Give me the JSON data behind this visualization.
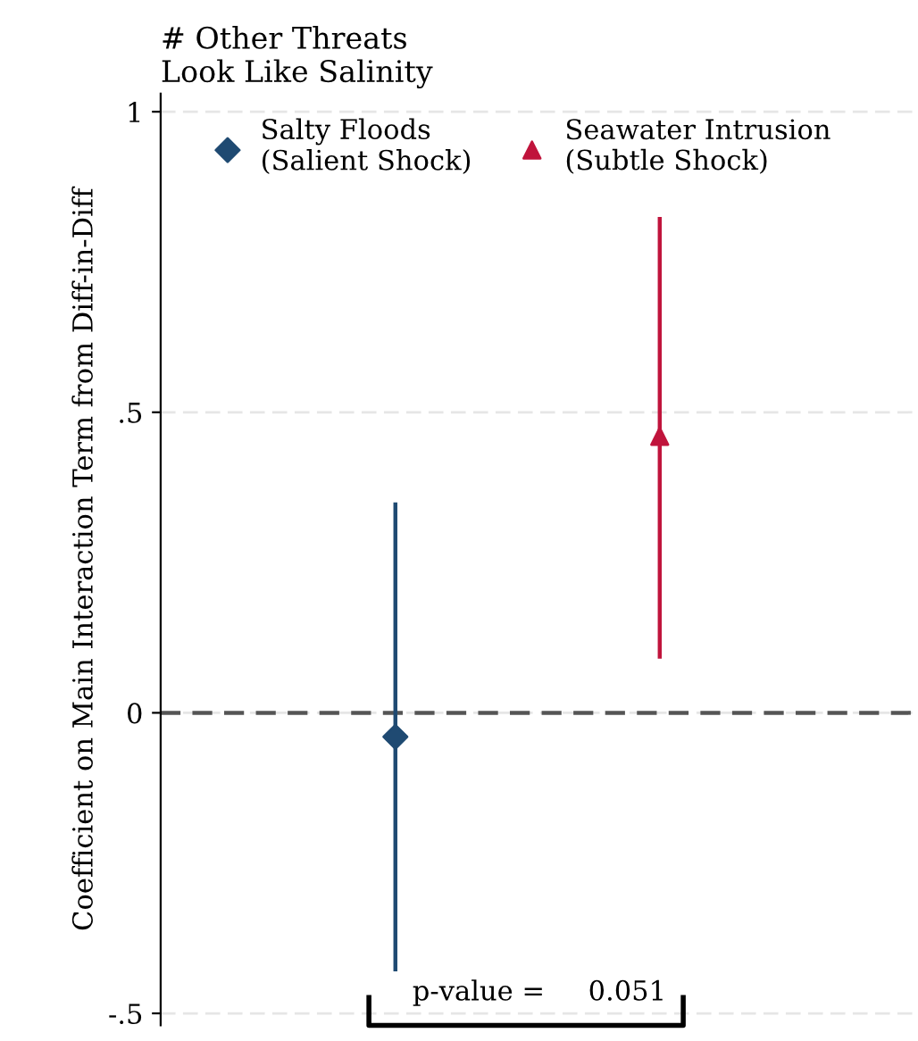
{
  "chart_data": {
    "type": "scatter",
    "title": "# Other Threats\nLook Like Salinity",
    "ylabel": "Coefficient on Main Interaction Term from Diff-in-Diff",
    "categories": [
      null,
      null
    ],
    "series": [
      {
        "name": "Salty Floods\n(Salient Shock)",
        "color": "#1f4a72",
        "marker": "diamond",
        "values": [
          -0.04,
          null
        ],
        "errors": [
          [
            -0.43,
            0.35
          ],
          null
        ]
      },
      {
        "name": "Seawater Intrusion\n(Subtle Shock)",
        "color": "#c0143c",
        "marker": "triangle",
        "values": [
          null,
          0.46
        ],
        "errors": [
          null,
          [
            0.09,
            0.825
          ]
        ]
      }
    ],
    "ylim": [
      -0.52,
      1.03
    ],
    "yticks": [
      {
        "value": -0.5,
        "label": "-.5"
      },
      {
        "value": 0,
        "label": "0"
      },
      {
        "value": 0.5,
        "label": ".5"
      },
      {
        "value": 1,
        "label": "1"
      }
    ],
    "ref_lines": [
      {
        "axis": "y",
        "value": 0,
        "color": "#555555",
        "line_style": "dashed"
      }
    ],
    "grid": "y",
    "legend": "top left",
    "tick_labels": "y",
    "annotations": [
      "p-value =     0.051"
    ]
  }
}
